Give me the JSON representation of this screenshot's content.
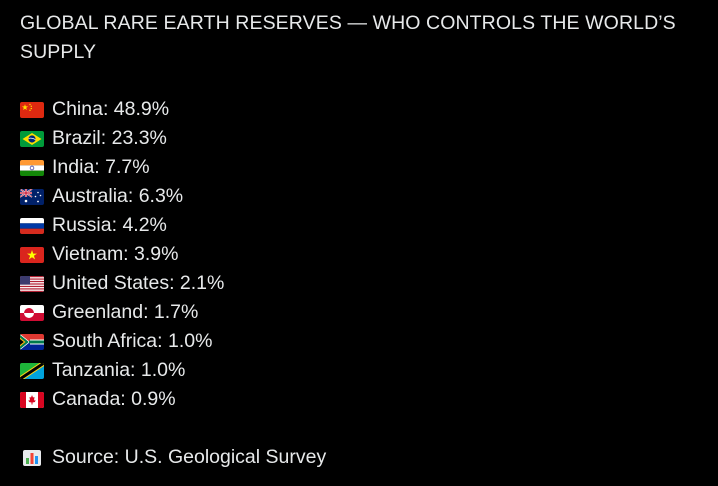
{
  "post": {
    "title": "GLOBAL RARE EARTH RESERVES — WHO CONTROLS THE WORLD’S SUPPLY",
    "items": [
      {
        "text": "China: 48.9%",
        "flag": "china-flag-icon"
      },
      {
        "text": "Brazil: 23.3%",
        "flag": "brazil-flag-icon"
      },
      {
        "text": "India: 7.7%",
        "flag": "india-flag-icon"
      },
      {
        "text": "Australia: 6.3%",
        "flag": "australia-flag-icon"
      },
      {
        "text": "Russia: 4.2%",
        "flag": "russia-flag-icon"
      },
      {
        "text": "Vietnam: 3.9%",
        "flag": "vietnam-flag-icon"
      },
      {
        "text": "United States: 2.1%",
        "flag": "united-states-flag-icon"
      },
      {
        "text": "Greenland: 1.7%",
        "flag": "greenland-flag-icon"
      },
      {
        "text": "South Africa: 1.0%",
        "flag": "south-africa-flag-icon"
      },
      {
        "text": "Tanzania: 1.0%",
        "flag": "tanzania-flag-icon"
      },
      {
        "text": "Canada: 0.9%",
        "flag": "canada-flag-icon"
      }
    ],
    "source": "Source: U.S. Geological Survey",
    "source_icon": "bar-chart-icon"
  },
  "colors": {
    "background": "#000000",
    "text": "#e7e9ea"
  }
}
